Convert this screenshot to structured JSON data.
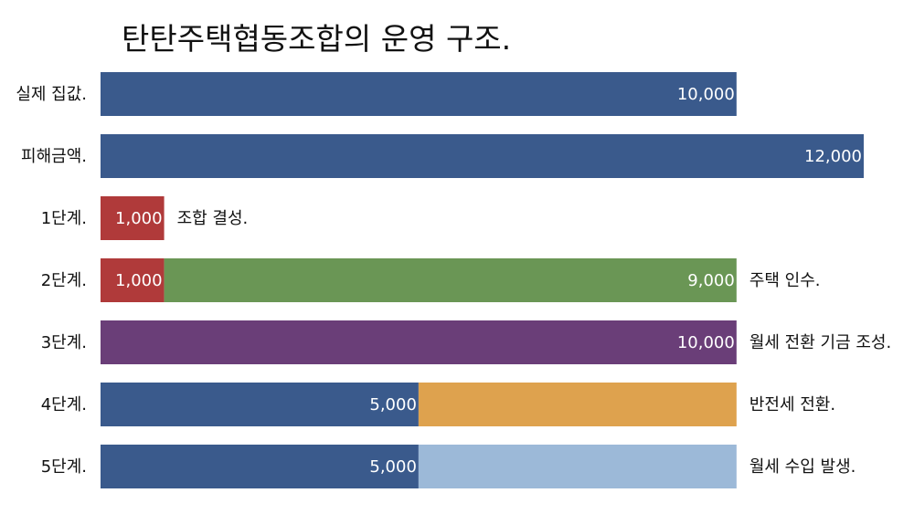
{
  "chart_data": {
    "type": "bar",
    "orientation": "horizontal",
    "stacked": true,
    "title": "탄탄주택협동조합의 운영 구조.",
    "xlabel": "",
    "ylabel": "",
    "xlim": [
      0,
      12000
    ],
    "grid": false,
    "legend": "none",
    "rows": [
      {
        "category": "실제 집값.",
        "note": "",
        "segments": [
          {
            "value": 10000,
            "label": "10,000",
            "color": "#3A5A8C"
          }
        ]
      },
      {
        "category": "피해금액.",
        "note": "",
        "segments": [
          {
            "value": 12000,
            "label": "12,000",
            "color": "#3A5A8C"
          }
        ]
      },
      {
        "category": "1단계.",
        "note": "조합 결성.",
        "segments": [
          {
            "value": 1000,
            "label": "1,000",
            "color": "#B03A3A"
          }
        ]
      },
      {
        "category": "2단계.",
        "note": "주택 인수.",
        "segments": [
          {
            "value": 1000,
            "label": "1,000",
            "color": "#B03A3A"
          },
          {
            "value": 9000,
            "label": "9,000",
            "color": "#6A9655"
          }
        ]
      },
      {
        "category": "3단계.",
        "note": "월세 전환 기금 조성.",
        "segments": [
          {
            "value": 10000,
            "label": "10,000",
            "color": "#6A3E78"
          }
        ]
      },
      {
        "category": "4단계.",
        "note": "반전세 전환.",
        "segments": [
          {
            "value": 5000,
            "label": "5,000",
            "color": "#3A5A8C"
          },
          {
            "value": 5000,
            "label": "",
            "color": "#DEA24E"
          }
        ]
      },
      {
        "category": "5단계.",
        "note": "월세 수입 발생.",
        "segments": [
          {
            "value": 5000,
            "label": "5,000",
            "color": "#3A5A8C"
          },
          {
            "value": 5000,
            "label": "",
            "color": "#9CB9D8"
          }
        ]
      }
    ]
  }
}
